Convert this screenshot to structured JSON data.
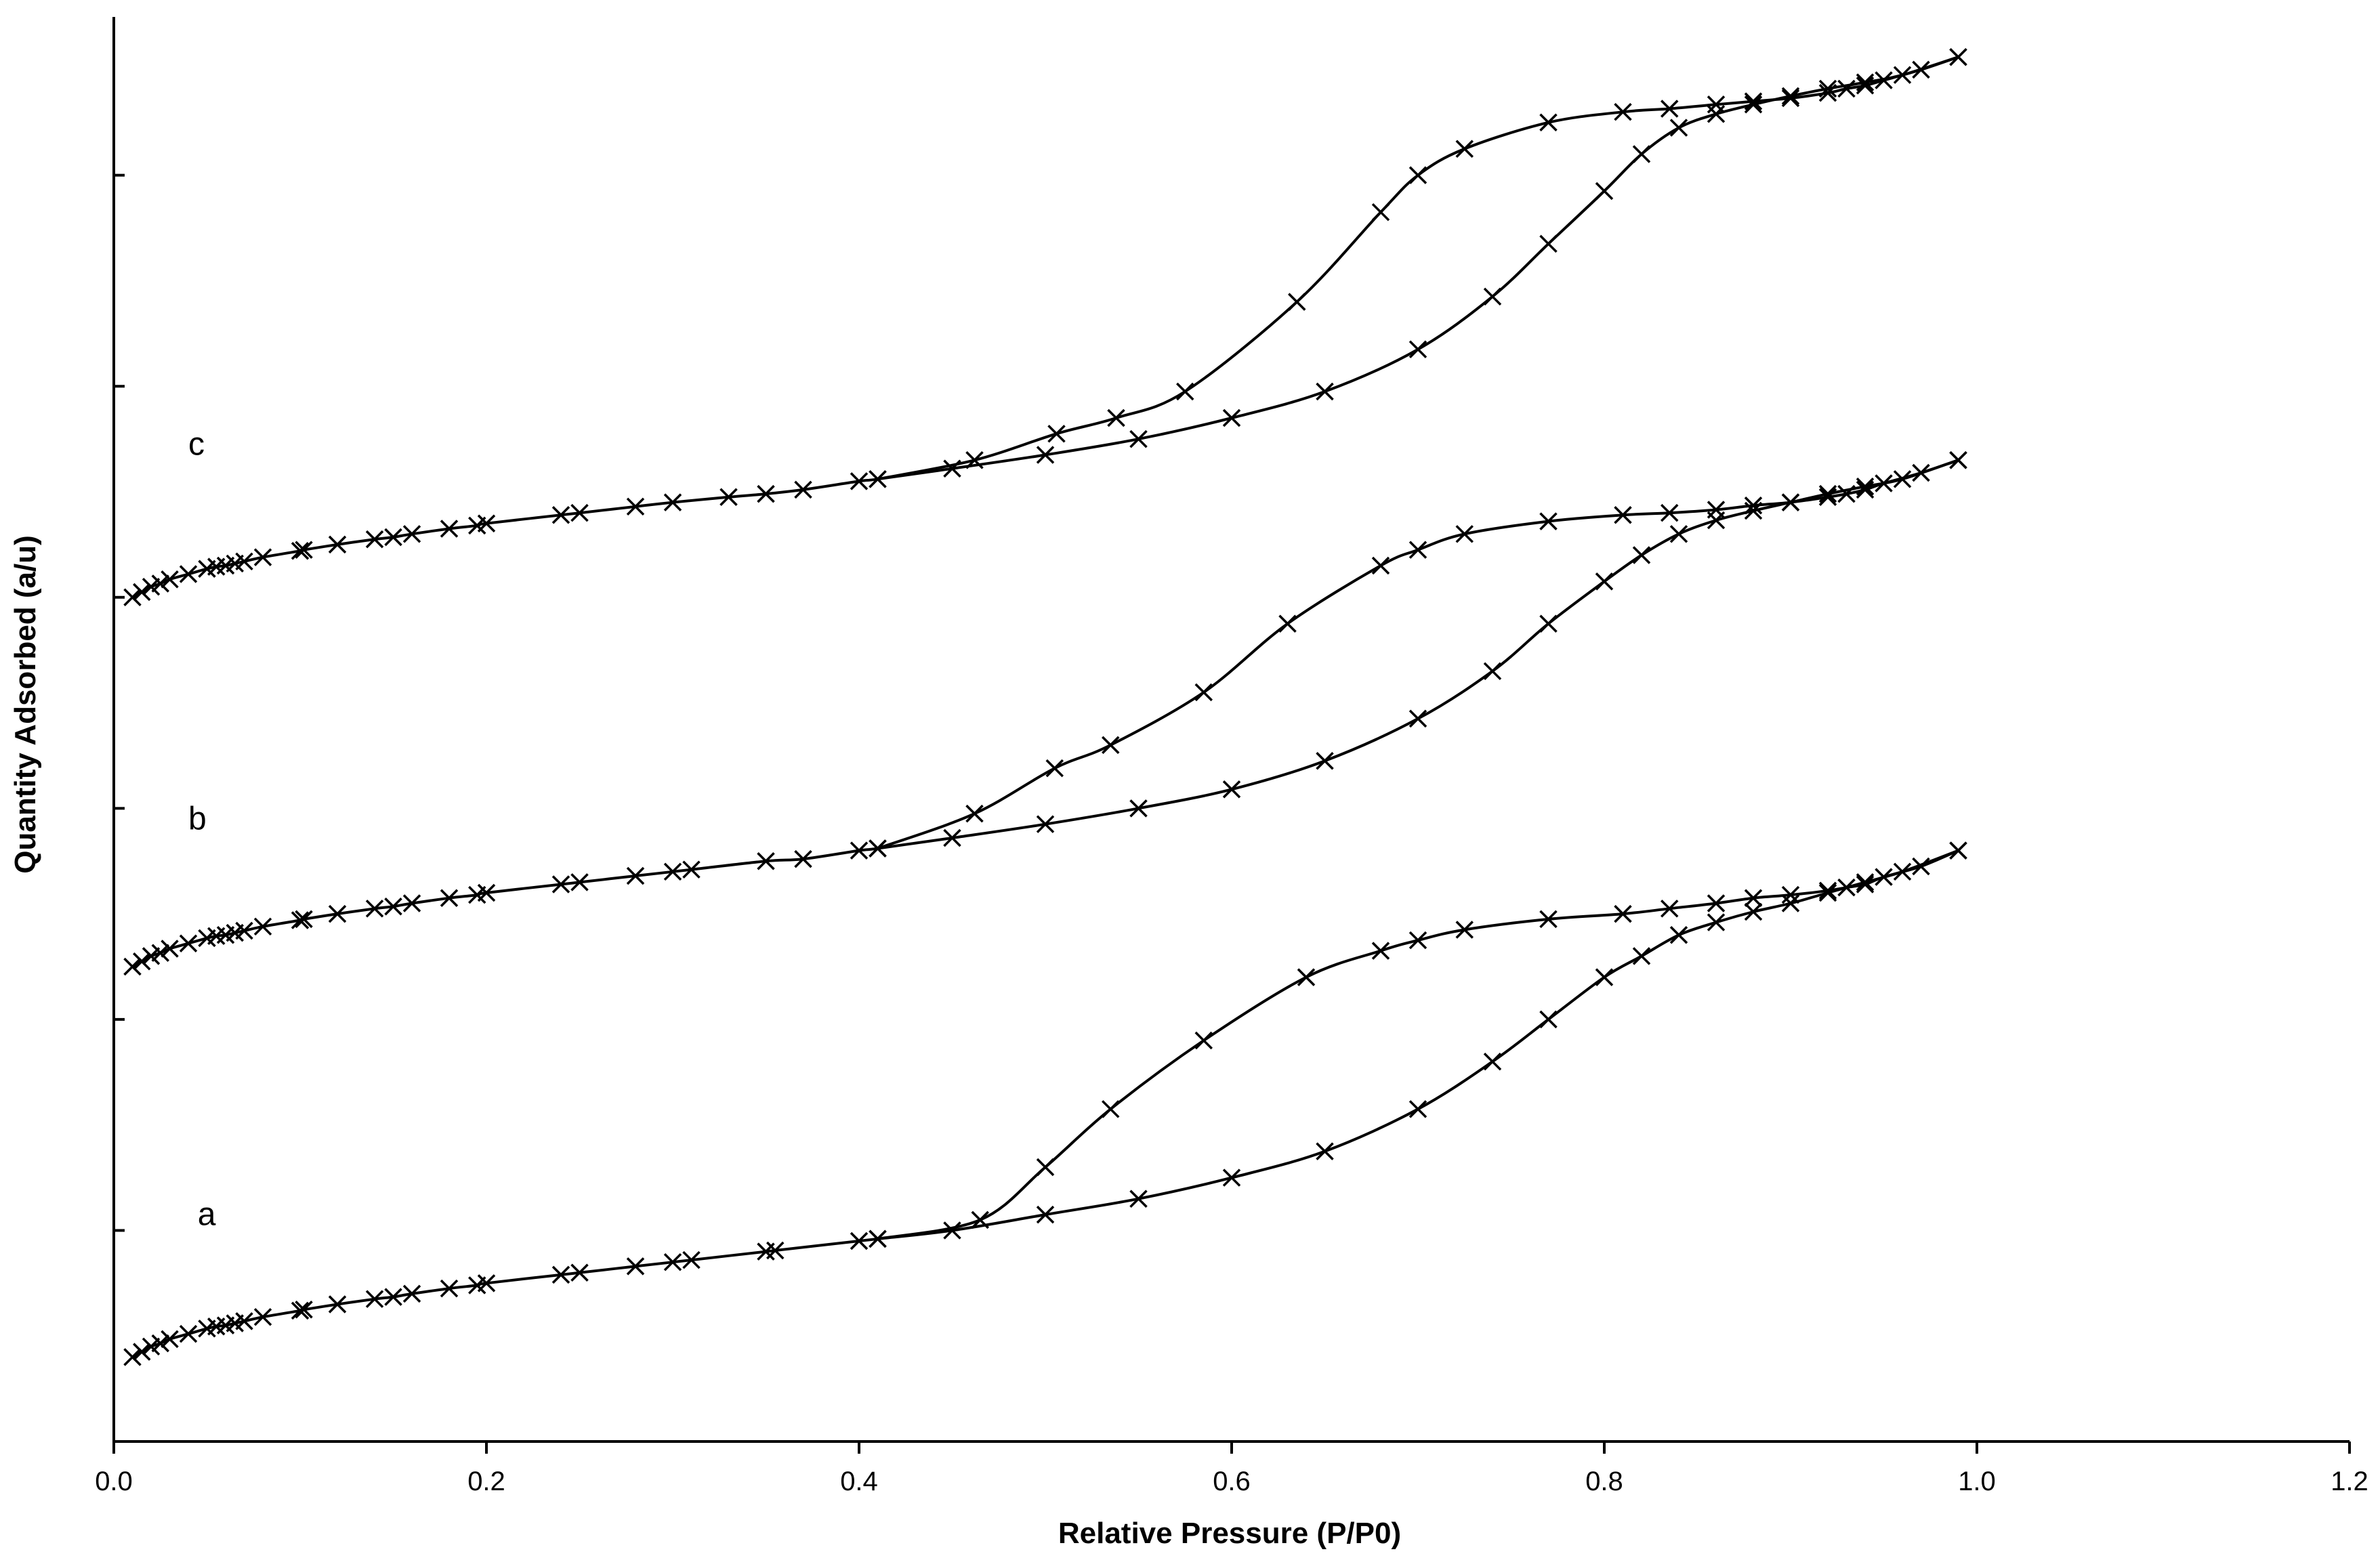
{
  "chart_data": {
    "type": "line",
    "title": "",
    "xlabel": "Relative Pressure  (P/P0)",
    "ylabel": "Quantity Adsorbed  (a/u)",
    "xlim": [
      0.0,
      1.2
    ],
    "ylim": [
      0,
      13.5
    ],
    "x_ticks": [
      "0.0",
      "0.2",
      "0.4",
      "0.6",
      "0.8",
      "1.0",
      "1.2"
    ],
    "y_ticks_unlabeled": [
      2,
      4,
      6,
      8,
      10,
      12
    ],
    "grid": false,
    "legend": "none",
    "marker": "x",
    "color": "#000000",
    "series": [
      {
        "name": "a",
        "label_at": [
          0.045,
          2.05
        ],
        "adsorption": {
          "x": [
            0.01,
            0.015,
            0.02,
            0.025,
            0.03,
            0.04,
            0.05,
            0.055,
            0.06,
            0.065,
            0.07,
            0.08,
            0.1,
            0.102,
            0.12,
            0.14,
            0.15,
            0.16,
            0.18,
            0.195,
            0.2,
            0.24,
            0.25,
            0.28,
            0.3,
            0.31,
            0.35,
            0.355,
            0.4,
            0.41,
            0.45,
            0.5,
            0.55,
            0.6,
            0.65,
            0.7,
            0.74,
            0.77,
            0.8,
            0.82,
            0.84,
            0.86,
            0.88,
            0.9,
            0.92,
            0.94,
            0.96,
            0.99
          ],
          "y": [
            0.8,
            0.85,
            0.9,
            0.93,
            0.97,
            1.02,
            1.07,
            1.09,
            1.1,
            1.12,
            1.14,
            1.18,
            1.24,
            1.25,
            1.3,
            1.35,
            1.37,
            1.4,
            1.45,
            1.48,
            1.5,
            1.58,
            1.6,
            1.66,
            1.7,
            1.72,
            1.8,
            1.81,
            1.9,
            1.92,
            2.0,
            2.15,
            2.3,
            2.5,
            2.75,
            3.15,
            3.6,
            4.0,
            4.4,
            4.6,
            4.8,
            4.92,
            5.02,
            5.1,
            5.2,
            5.3,
            5.4,
            5.6
          ]
        },
        "desorption": {
          "x": [
            0.99,
            0.97,
            0.95,
            0.94,
            0.93,
            0.92,
            0.9,
            0.88,
            0.86,
            0.835,
            0.81,
            0.77,
            0.725,
            0.7,
            0.68,
            0.64,
            0.585,
            0.535,
            0.5,
            0.465,
            0.41
          ],
          "y": [
            5.6,
            5.45,
            5.35,
            5.28,
            5.25,
            5.22,
            5.18,
            5.15,
            5.1,
            5.05,
            5.0,
            4.95,
            4.85,
            4.75,
            4.65,
            4.4,
            3.8,
            3.15,
            2.6,
            2.1,
            1.92
          ]
        }
      },
      {
        "name": "b",
        "label_at": [
          0.04,
          5.8
        ],
        "adsorption": {
          "x": [
            0.01,
            0.015,
            0.02,
            0.025,
            0.03,
            0.04,
            0.05,
            0.055,
            0.06,
            0.065,
            0.07,
            0.08,
            0.1,
            0.102,
            0.12,
            0.14,
            0.15,
            0.16,
            0.18,
            0.195,
            0.2,
            0.24,
            0.25,
            0.28,
            0.3,
            0.31,
            0.35,
            0.37,
            0.4,
            0.41,
            0.45,
            0.5,
            0.55,
            0.6,
            0.65,
            0.7,
            0.74,
            0.77,
            0.8,
            0.82,
            0.84,
            0.86,
            0.88,
            0.9,
            0.92,
            0.94,
            0.96,
            0.99
          ],
          "y": [
            4.5,
            4.55,
            4.6,
            4.63,
            4.67,
            4.72,
            4.77,
            4.79,
            4.8,
            4.82,
            4.84,
            4.88,
            4.94,
            4.95,
            5.0,
            5.05,
            5.07,
            5.1,
            5.15,
            5.18,
            5.2,
            5.28,
            5.3,
            5.36,
            5.4,
            5.42,
            5.5,
            5.52,
            5.6,
            5.62,
            5.72,
            5.85,
            6.0,
            6.18,
            6.45,
            6.85,
            7.3,
            7.75,
            8.15,
            8.4,
            8.6,
            8.73,
            8.82,
            8.9,
            8.98,
            9.05,
            9.12,
            9.3
          ]
        },
        "desorption": {
          "x": [
            0.99,
            0.97,
            0.95,
            0.94,
            0.93,
            0.92,
            0.9,
            0.88,
            0.86,
            0.835,
            0.81,
            0.77,
            0.725,
            0.7,
            0.68,
            0.63,
            0.585,
            0.535,
            0.505,
            0.462,
            0.41
          ],
          "y": [
            9.3,
            9.18,
            9.08,
            9.02,
            8.98,
            8.95,
            8.9,
            8.87,
            8.83,
            8.8,
            8.78,
            8.72,
            8.6,
            8.45,
            8.3,
            7.75,
            7.1,
            6.6,
            6.38,
            5.95,
            5.62
          ]
        }
      },
      {
        "name": "c",
        "label_at": [
          0.04,
          9.35
        ],
        "adsorption": {
          "x": [
            0.01,
            0.015,
            0.02,
            0.025,
            0.03,
            0.04,
            0.05,
            0.055,
            0.06,
            0.065,
            0.07,
            0.08,
            0.1,
            0.102,
            0.12,
            0.14,
            0.15,
            0.16,
            0.18,
            0.195,
            0.2,
            0.24,
            0.25,
            0.28,
            0.3,
            0.33,
            0.35,
            0.37,
            0.4,
            0.41,
            0.45,
            0.5,
            0.55,
            0.6,
            0.65,
            0.7,
            0.74,
            0.77,
            0.8,
            0.82,
            0.84,
            0.86,
            0.88,
            0.9,
            0.92,
            0.94,
            0.96,
            0.99
          ],
          "y": [
            8.0,
            8.05,
            8.1,
            8.13,
            8.17,
            8.22,
            8.27,
            8.29,
            8.3,
            8.32,
            8.34,
            8.38,
            8.44,
            8.45,
            8.5,
            8.55,
            8.57,
            8.6,
            8.65,
            8.68,
            8.7,
            8.78,
            8.8,
            8.86,
            8.9,
            8.95,
            8.98,
            9.02,
            9.1,
            9.12,
            9.22,
            9.35,
            9.5,
            9.7,
            9.95,
            10.35,
            10.85,
            11.35,
            11.85,
            12.2,
            12.45,
            12.58,
            12.67,
            12.75,
            12.82,
            12.88,
            12.95,
            13.12
          ]
        },
        "desorption": {
          "x": [
            0.99,
            0.97,
            0.95,
            0.94,
            0.93,
            0.92,
            0.9,
            0.88,
            0.86,
            0.835,
            0.81,
            0.77,
            0.725,
            0.7,
            0.68,
            0.635,
            0.575,
            0.538,
            0.506,
            0.462,
            0.41
          ],
          "y": [
            13.12,
            13.0,
            12.9,
            12.85,
            12.82,
            12.78,
            12.73,
            12.7,
            12.67,
            12.63,
            12.6,
            12.5,
            12.25,
            12.0,
            11.65,
            10.8,
            9.95,
            9.7,
            9.55,
            9.3,
            9.12
          ]
        }
      }
    ]
  }
}
